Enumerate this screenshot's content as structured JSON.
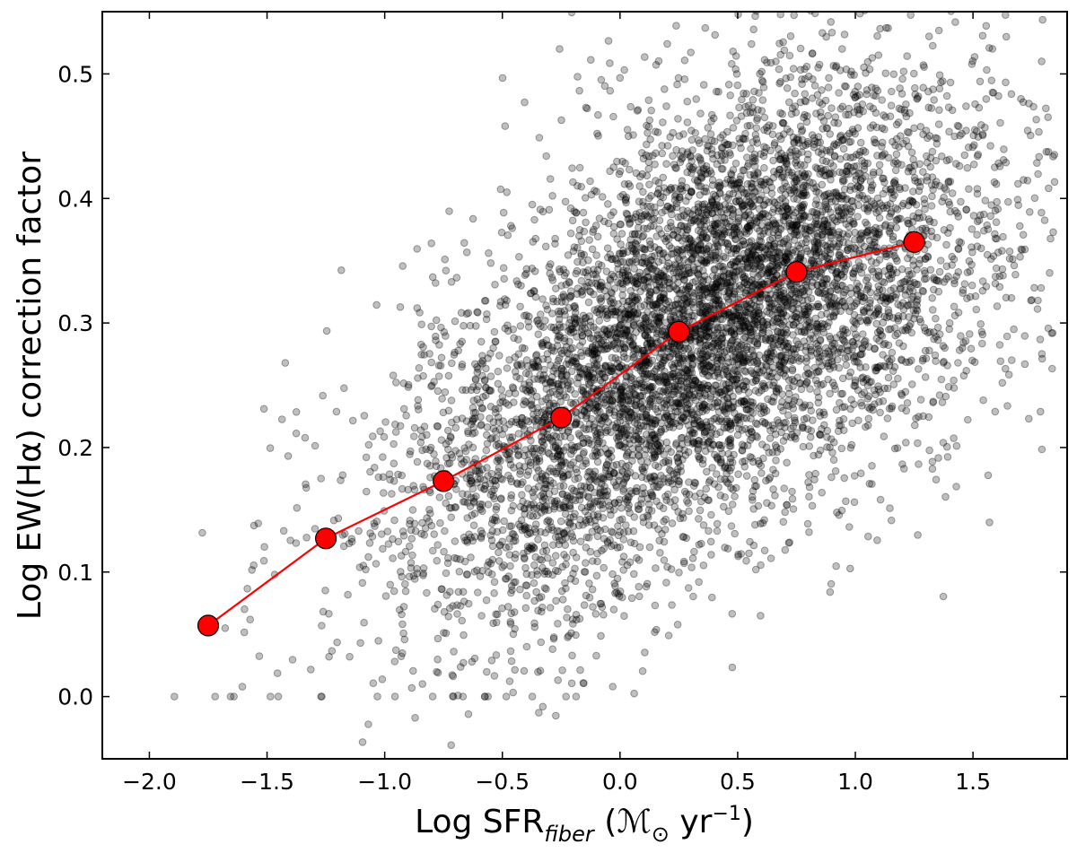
{
  "chart_data": {
    "type": "scatter",
    "xlabel": "Log SFR",
    "xlabel_sub": "fiber",
    "xlabel_units": "(ℳ",
    "xlabel_units_sub": "⊙",
    "xlabel_units_tail": " yr",
    "xlabel_units_sup": "−1",
    "xlabel_units_close": ")",
    "ylabel": "Log EW(Hα) correction factor",
    "xlim": [
      -2.2,
      1.9
    ],
    "ylim": [
      -0.05,
      0.55
    ],
    "xticks": [
      -2.0,
      -1.5,
      -1.0,
      -0.5,
      0.0,
      0.5,
      1.0,
      1.5
    ],
    "yticks": [
      0.0,
      0.1,
      0.2,
      0.3,
      0.4,
      0.5
    ],
    "xtick_labels": [
      "−2.0",
      "−1.5",
      "−1.0",
      "−0.5",
      "0.0",
      "0.5",
      "1.0",
      "1.5"
    ],
    "ytick_labels": [
      "0.0",
      "0.1",
      "0.2",
      "0.3",
      "0.4",
      "0.5"
    ],
    "grid": false,
    "scatter_color": "#000000",
    "scatter_alpha": 0.25,
    "scatter_count_approx": 7000,
    "scatter_trend": "Dense cloud; correction factor rises with SFR; spread about ±0.1",
    "series": [
      {
        "color": "#ff0000",
        "marker": "circle",
        "x": [
          -1.75,
          -1.25,
          -0.75,
          -0.25,
          0.25,
          0.75,
          1.25
        ],
        "y": [
          0.057,
          0.127,
          0.173,
          0.224,
          0.293,
          0.341,
          0.365
        ]
      }
    ]
  }
}
